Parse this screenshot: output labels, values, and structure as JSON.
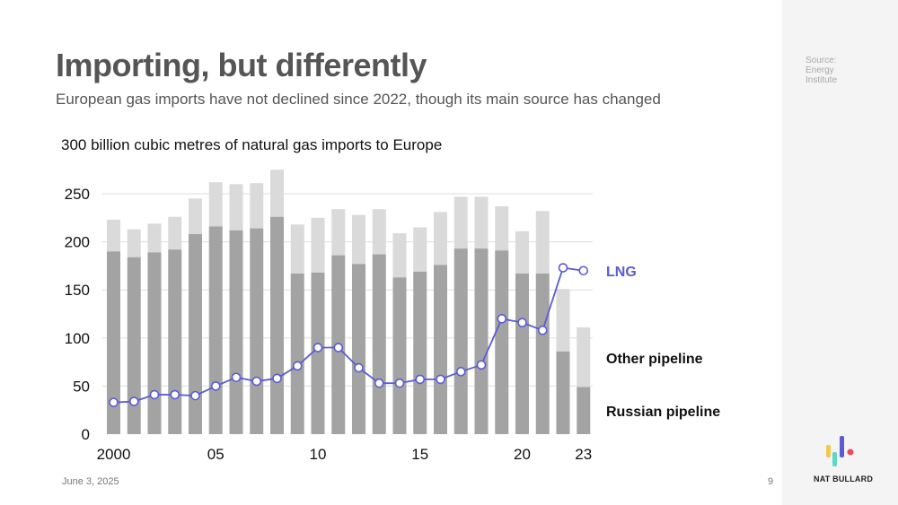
{
  "header": {
    "title": "Importing, but differently",
    "subtitle": "European gas imports have not declined since 2022, though its main source has changed"
  },
  "source": {
    "lines": [
      "Source:",
      "Energy",
      "Institute"
    ]
  },
  "footer": {
    "date": "June 3, 2025",
    "page_number": "9",
    "brand": "NAT BULLARD"
  },
  "colors": {
    "russian_pipeline": "#a3a3a3",
    "other_pipeline": "#dadada",
    "lng": "#5b5bd6",
    "grid": "#dddddd",
    "logo": [
      "#f2c94c",
      "#5ed6c8",
      "#5b5bd6",
      "#e84b5b"
    ]
  },
  "chart_data": {
    "type": "bar",
    "title": "300 billion cubic metres of natural gas imports to Europe",
    "xlabel": "",
    "ylabel": "",
    "ylim": [
      0,
      300
    ],
    "yticks": [
      0,
      50,
      100,
      150,
      200,
      250
    ],
    "x": [
      2000,
      2001,
      2002,
      2003,
      2004,
      2005,
      2006,
      2007,
      2008,
      2009,
      2010,
      2011,
      2012,
      2013,
      2014,
      2015,
      2016,
      2017,
      2018,
      2019,
      2020,
      2021,
      2022,
      2023
    ],
    "xtick_labels": [
      "2000",
      "05",
      "10",
      "15",
      "20",
      "23"
    ],
    "xtick_years": [
      2000,
      2005,
      2010,
      2015,
      2020,
      2023
    ],
    "series": [
      {
        "name": "Russian pipeline",
        "kind": "bar",
        "values": [
          190,
          184,
          189,
          192,
          208,
          216,
          212,
          214,
          226,
          167,
          168,
          186,
          177,
          187,
          163,
          169,
          176,
          193,
          193,
          191,
          167,
          167,
          86,
          49
        ]
      },
      {
        "name": "Other pipeline",
        "kind": "bar-stack",
        "values": [
          33,
          29,
          30,
          34,
          37,
          46,
          48,
          47,
          49,
          51,
          57,
          48,
          51,
          47,
          46,
          46,
          55,
          54,
          54,
          46,
          44,
          65,
          65,
          62
        ]
      },
      {
        "name": "LNG",
        "kind": "line",
        "values": [
          33,
          34,
          41,
          41,
          40,
          50,
          59,
          55,
          58,
          71,
          90,
          90,
          69,
          53,
          53,
          57,
          57,
          65,
          72,
          120,
          116,
          108,
          173,
          170
        ]
      }
    ],
    "legend": {
      "lng": "LNG",
      "other": "Other pipeline",
      "russian": "Russian pipeline"
    }
  }
}
